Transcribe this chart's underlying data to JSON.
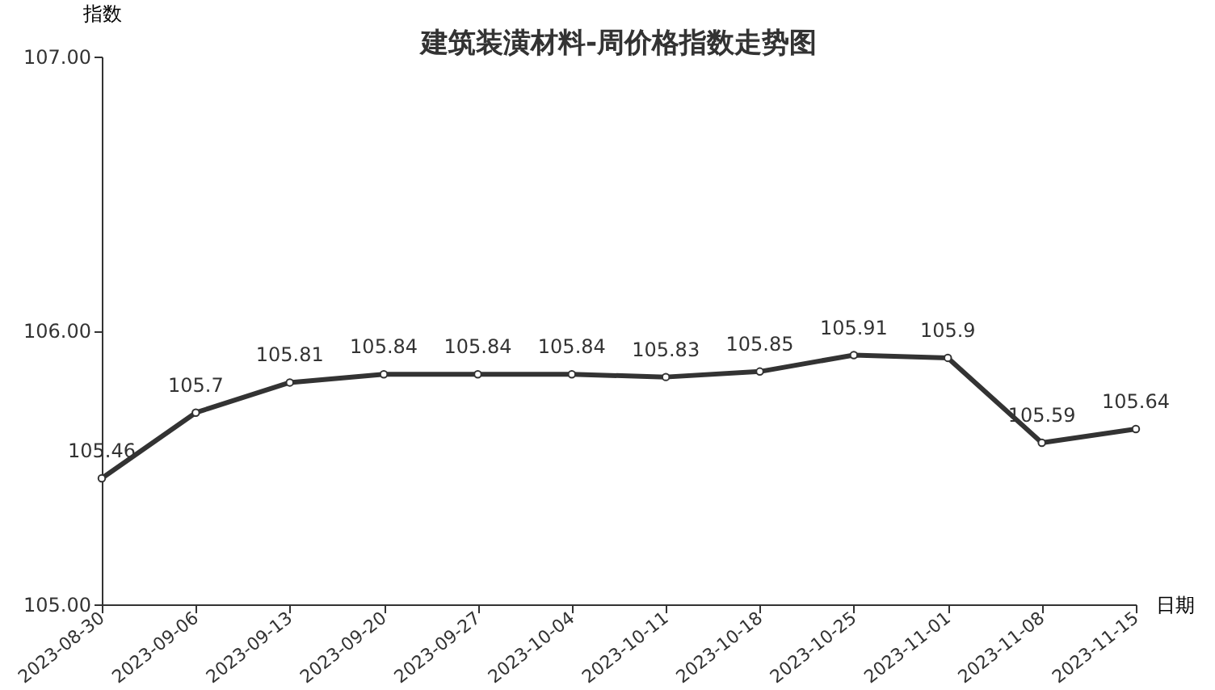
{
  "chart_data": {
    "type": "line",
    "title": "建筑装潢材料-周价格指数走势图",
    "xlabel": "日期",
    "ylabel": "指数",
    "categories": [
      "2023-08-30",
      "2023-09-06",
      "2023-09-13",
      "2023-09-20",
      "2023-09-27",
      "2023-10-04",
      "2023-10-11",
      "2023-10-18",
      "2023-10-25",
      "2023-11-01",
      "2023-11-08",
      "2023-11-15"
    ],
    "series": [
      {
        "color": "#333333",
        "values": [
          105.46,
          105.7,
          105.81,
          105.84,
          105.84,
          105.84,
          105.83,
          105.85,
          105.91,
          105.9,
          105.59,
          105.64
        ]
      }
    ],
    "ylim": [
      105,
      107
    ],
    "yticks": [
      {
        "value": 105,
        "label": "105.00"
      },
      {
        "value": 106,
        "label": "106.00"
      },
      {
        "value": 107,
        "label": "107.00"
      }
    ],
    "data_labels": true,
    "marker": "circle",
    "line_style": "solid",
    "grid": false,
    "legend": false
  }
}
